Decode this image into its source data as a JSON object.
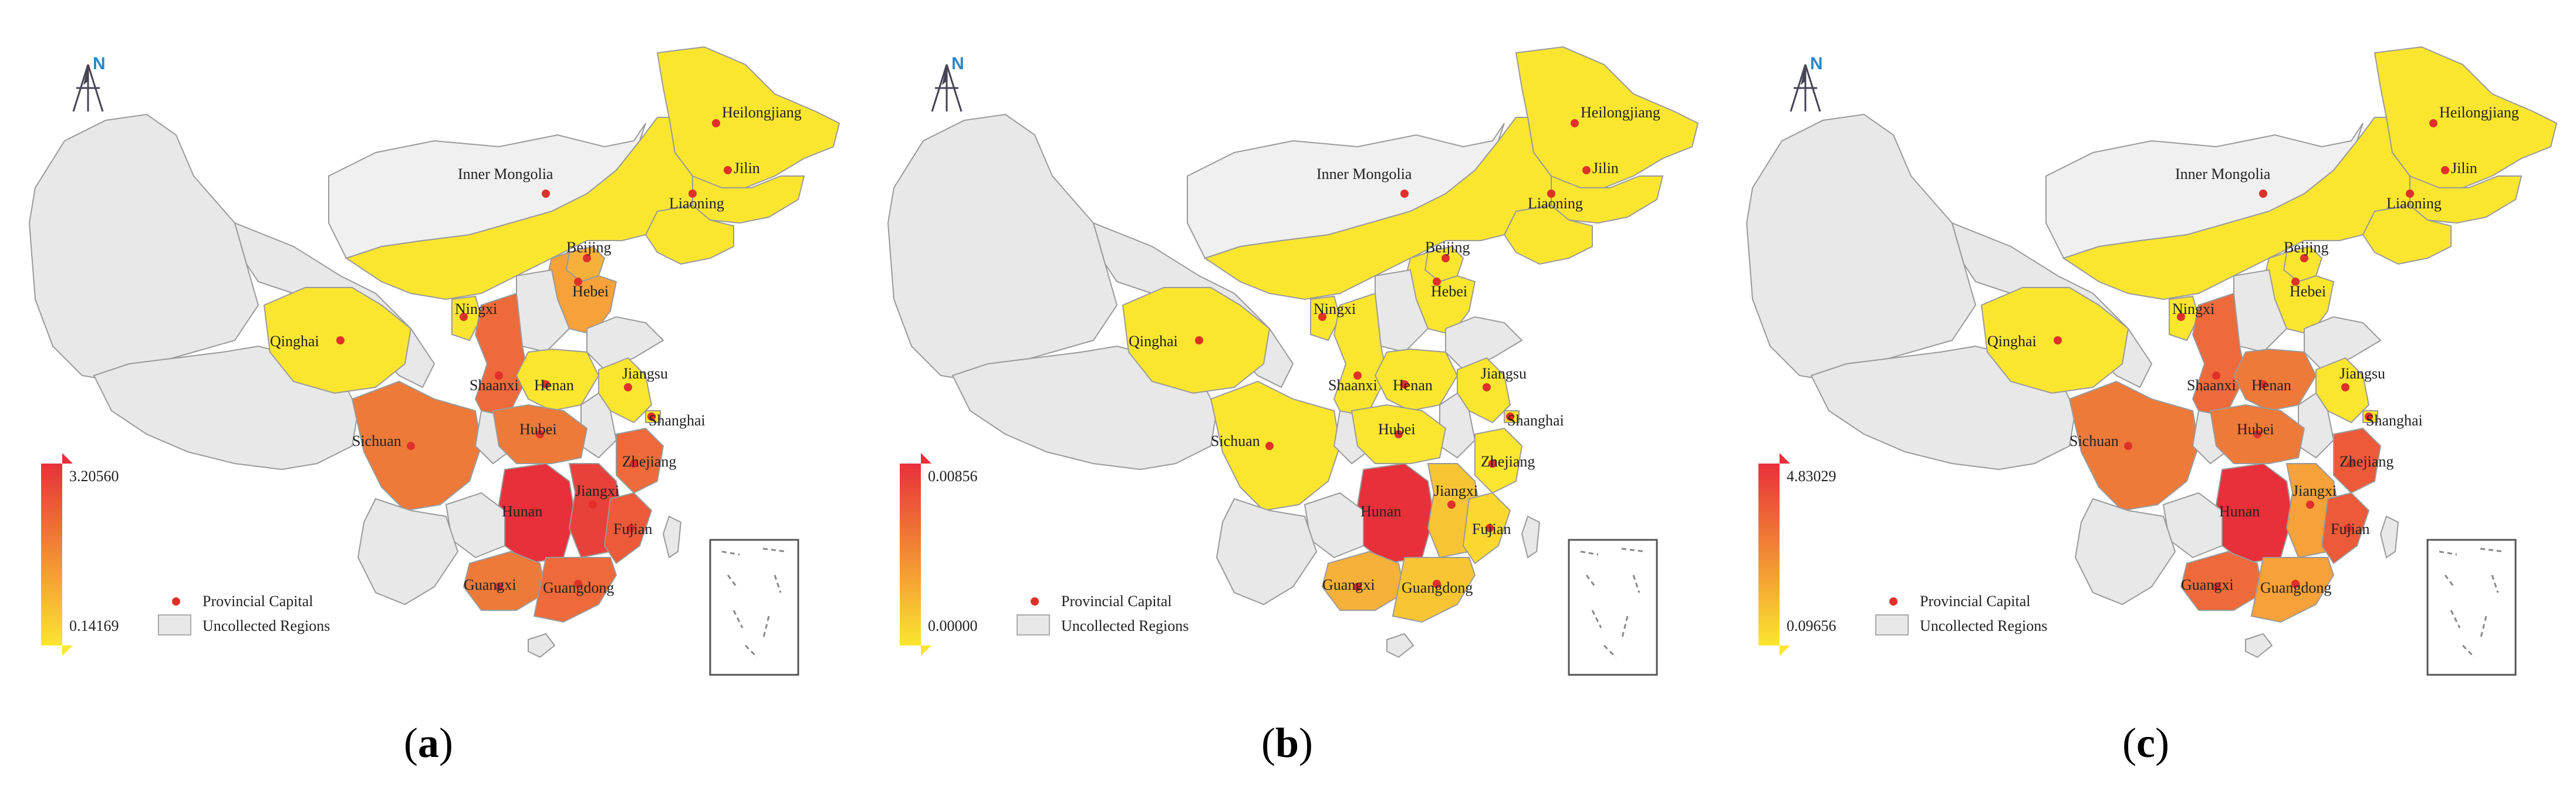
{
  "panels": [
    {
      "caption_letter": "a",
      "legend": {
        "max": "3.20560",
        "min": "0.14169",
        "capital_label": "Provincial Capital",
        "uncollected_label": "Uncollected Regions"
      },
      "north": "N",
      "province_colors": {
        "heilongjiang": "#fbe62f",
        "jilin": "#fbe62f",
        "liaoning": "#fbe62f",
        "inner_mongolia": "#fbe62f",
        "beijing": "#f6b13a",
        "hebei": "#f6a13a",
        "ningxia": "#fbe62f",
        "shaanxi": "#ef6a3a",
        "henan": "#fbe62f",
        "shandong": "#e8e8e8",
        "jiangsu": "#fbe62f",
        "shanghai": "#fbe62f",
        "qinghai": "#fbe62f",
        "sichuan": "#ee7a3a",
        "hubei": "#ee7a3a",
        "hunan": "#e8303a",
        "jiangxi": "#e8403a",
        "zhejiang": "#ee6a3a",
        "fujian": "#ec5a3a",
        "guangxi": "#ee7a3a",
        "guangdong": "#ee6a3a"
      },
      "labels": {
        "heilongjiang": "Heilongjiang",
        "jilin": "Jilin",
        "liaoning": "Liaoning",
        "inner_mongolia": "Inner Mongolia",
        "beijing": "Beijing",
        "hebei": "Hebei",
        "ningxia": "Ningxi",
        "shaanxi": "Shaanxi",
        "henan": "Henan",
        "jiangsu": "Jiangsu",
        "shanghai": "Shanghai",
        "qinghai": "Qinghai",
        "sichuan": "Sichuan",
        "hubei": "Hubei",
        "hunan": "Hunan",
        "jiangxi": "Jiangxi",
        "zhejiang": "Zhejiang",
        "fujian": "Fujian",
        "guangxi": "Guangxi",
        "guangdong": "Guangdong"
      }
    },
    {
      "caption_letter": "b",
      "legend": {
        "max": "0.00856",
        "min": "0.00000",
        "capital_label": "Provincial Capital",
        "uncollected_label": "Uncollected Regions"
      },
      "north": "N",
      "province_colors": {
        "heilongjiang": "#fbe62f",
        "jilin": "#fbe62f",
        "liaoning": "#fbe62f",
        "inner_mongolia": "#fbe62f",
        "beijing": "#fbe62f",
        "hebei": "#fbe62f",
        "ningxia": "#fbe62f",
        "shaanxi": "#fbe62f",
        "henan": "#fbe62f",
        "shandong": "#e8e8e8",
        "jiangsu": "#fbe62f",
        "shanghai": "#fbe62f",
        "qinghai": "#fbe62f",
        "sichuan": "#fbe62f",
        "hubei": "#fbe62f",
        "hunan": "#e8303a",
        "jiangxi": "#f7c534",
        "zhejiang": "#fbe62f",
        "fujian": "#fbd830",
        "guangxi": "#f6b13a",
        "guangdong": "#f7c534"
      },
      "labels": {
        "heilongjiang": "Heilongjiang",
        "jilin": "Jilin",
        "liaoning": "Liaoning",
        "inner_mongolia": "Inner Mongolia",
        "beijing": "Beijing",
        "hebei": "Hebei",
        "ningxia": "Ningxi",
        "shaanxi": "Shaanxi",
        "henan": "Henan",
        "jiangsu": "Jiangsu",
        "shanghai": "Shanghai",
        "qinghai": "Qinghai",
        "sichuan": "Sichuan",
        "hubei": "Hubei",
        "hunan": "Hunan",
        "jiangxi": "Jiangxi",
        "zhejiang": "Zhejiang",
        "fujian": "Fujian",
        "guangxi": "Guangxi",
        "guangdong": "Guangdong"
      }
    },
    {
      "caption_letter": "c",
      "legend": {
        "max": "4.83029",
        "min": "0.09656",
        "capital_label": "Provincial Capital",
        "uncollected_label": "Uncollected Regions"
      },
      "north": "N",
      "province_colors": {
        "heilongjiang": "#fbe62f",
        "jilin": "#fbe62f",
        "liaoning": "#fbe62f",
        "inner_mongolia": "#fbe62f",
        "beijing": "#fbe62f",
        "hebei": "#fbe62f",
        "ningxia": "#fbe62f",
        "shaanxi": "#ef6a3a",
        "henan": "#ee7a3a",
        "shandong": "#e8e8e8",
        "jiangsu": "#fbe62f",
        "shanghai": "#fbe62f",
        "qinghai": "#fbe62f",
        "sichuan": "#ee7a3a",
        "hubei": "#ee7a3a",
        "hunan": "#e8303a",
        "jiangxi": "#f6a13a",
        "zhejiang": "#ec5a3a",
        "fujian": "#ec5a3a",
        "guangxi": "#ee6a3a",
        "guangdong": "#f6a13a"
      },
      "labels": {
        "heilongjiang": "Heilongjiang",
        "jilin": "Jilin",
        "liaoning": "Liaoning",
        "inner_mongolia": "Inner Mongolia",
        "beijing": "Beijing",
        "hebei": "Hebei",
        "ningxia": "Ningxi",
        "shaanxi": "Shaanxi",
        "henan": "Henan",
        "jiangsu": "Jiangsu",
        "shanghai": "Shanghai",
        "qinghai": "Qinghai",
        "sichuan": "Sichuan",
        "hubei": "Hubei",
        "hunan": "Hunan",
        "jiangxi": "Jiangxi",
        "zhejiang": "Zhejiang",
        "fujian": "Fujian",
        "guangxi": "Guangxi",
        "guangdong": "Guangdong"
      }
    }
  ],
  "colors": {
    "uncollected": "#e8e8e8",
    "border": "#9a9a9a",
    "capital_dot": "#e0302a",
    "ramp_top": "#e8303a",
    "ramp_bottom": "#fbe62f",
    "north_blue": "#2a88c8"
  }
}
